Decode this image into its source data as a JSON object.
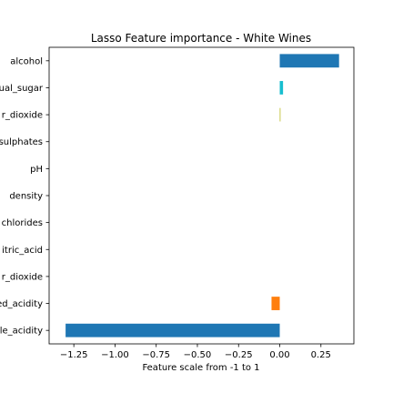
{
  "chart_data": {
    "type": "bar",
    "orientation": "horizontal",
    "title": "Lasso Feature importance - White Wines",
    "xlabel": "Feature scale from -1 to 1",
    "ylabel": "",
    "xlim": [
      -1.4,
      0.45
    ],
    "xticks": [
      -1.25,
      -1.0,
      -0.75,
      -0.5,
      -0.25,
      0.0,
      0.25
    ],
    "xtick_labels": [
      "−1.25",
      "−1.00",
      "−0.75",
      "−0.50",
      "−0.25",
      "0.00",
      "0.25"
    ],
    "grid": false,
    "legend": "none",
    "categories": [
      "alcohol",
      "residual_sugar",
      "free_sulfur_dioxide",
      "sulphates",
      "pH",
      "density",
      "chlorides",
      "citric_acid",
      "total_sulfur_dioxide",
      "fixed_acidity",
      "volatile_acidity"
    ],
    "category_labels_visible": [
      "alcohol",
      "ual_sugar",
      "r_dioxide",
      "sulphates",
      "pH",
      "density",
      "chlorides",
      "itric_acid",
      "r_dioxide",
      "ed_acidity",
      "le_acidity"
    ],
    "values": [
      0.36,
      0.02,
      0.003,
      0.0,
      0.0,
      0.0,
      0.0,
      0.0,
      0.0,
      -0.05,
      -1.3
    ],
    "colors": [
      "#1f77b4",
      "#17becf",
      "#bcbd22",
      "#7f7f7f",
      "#e377c2",
      "#8c564b",
      "#9467bd",
      "#d62728",
      "#2ca02c",
      "#ff7f0e",
      "#1f77b4"
    ]
  }
}
